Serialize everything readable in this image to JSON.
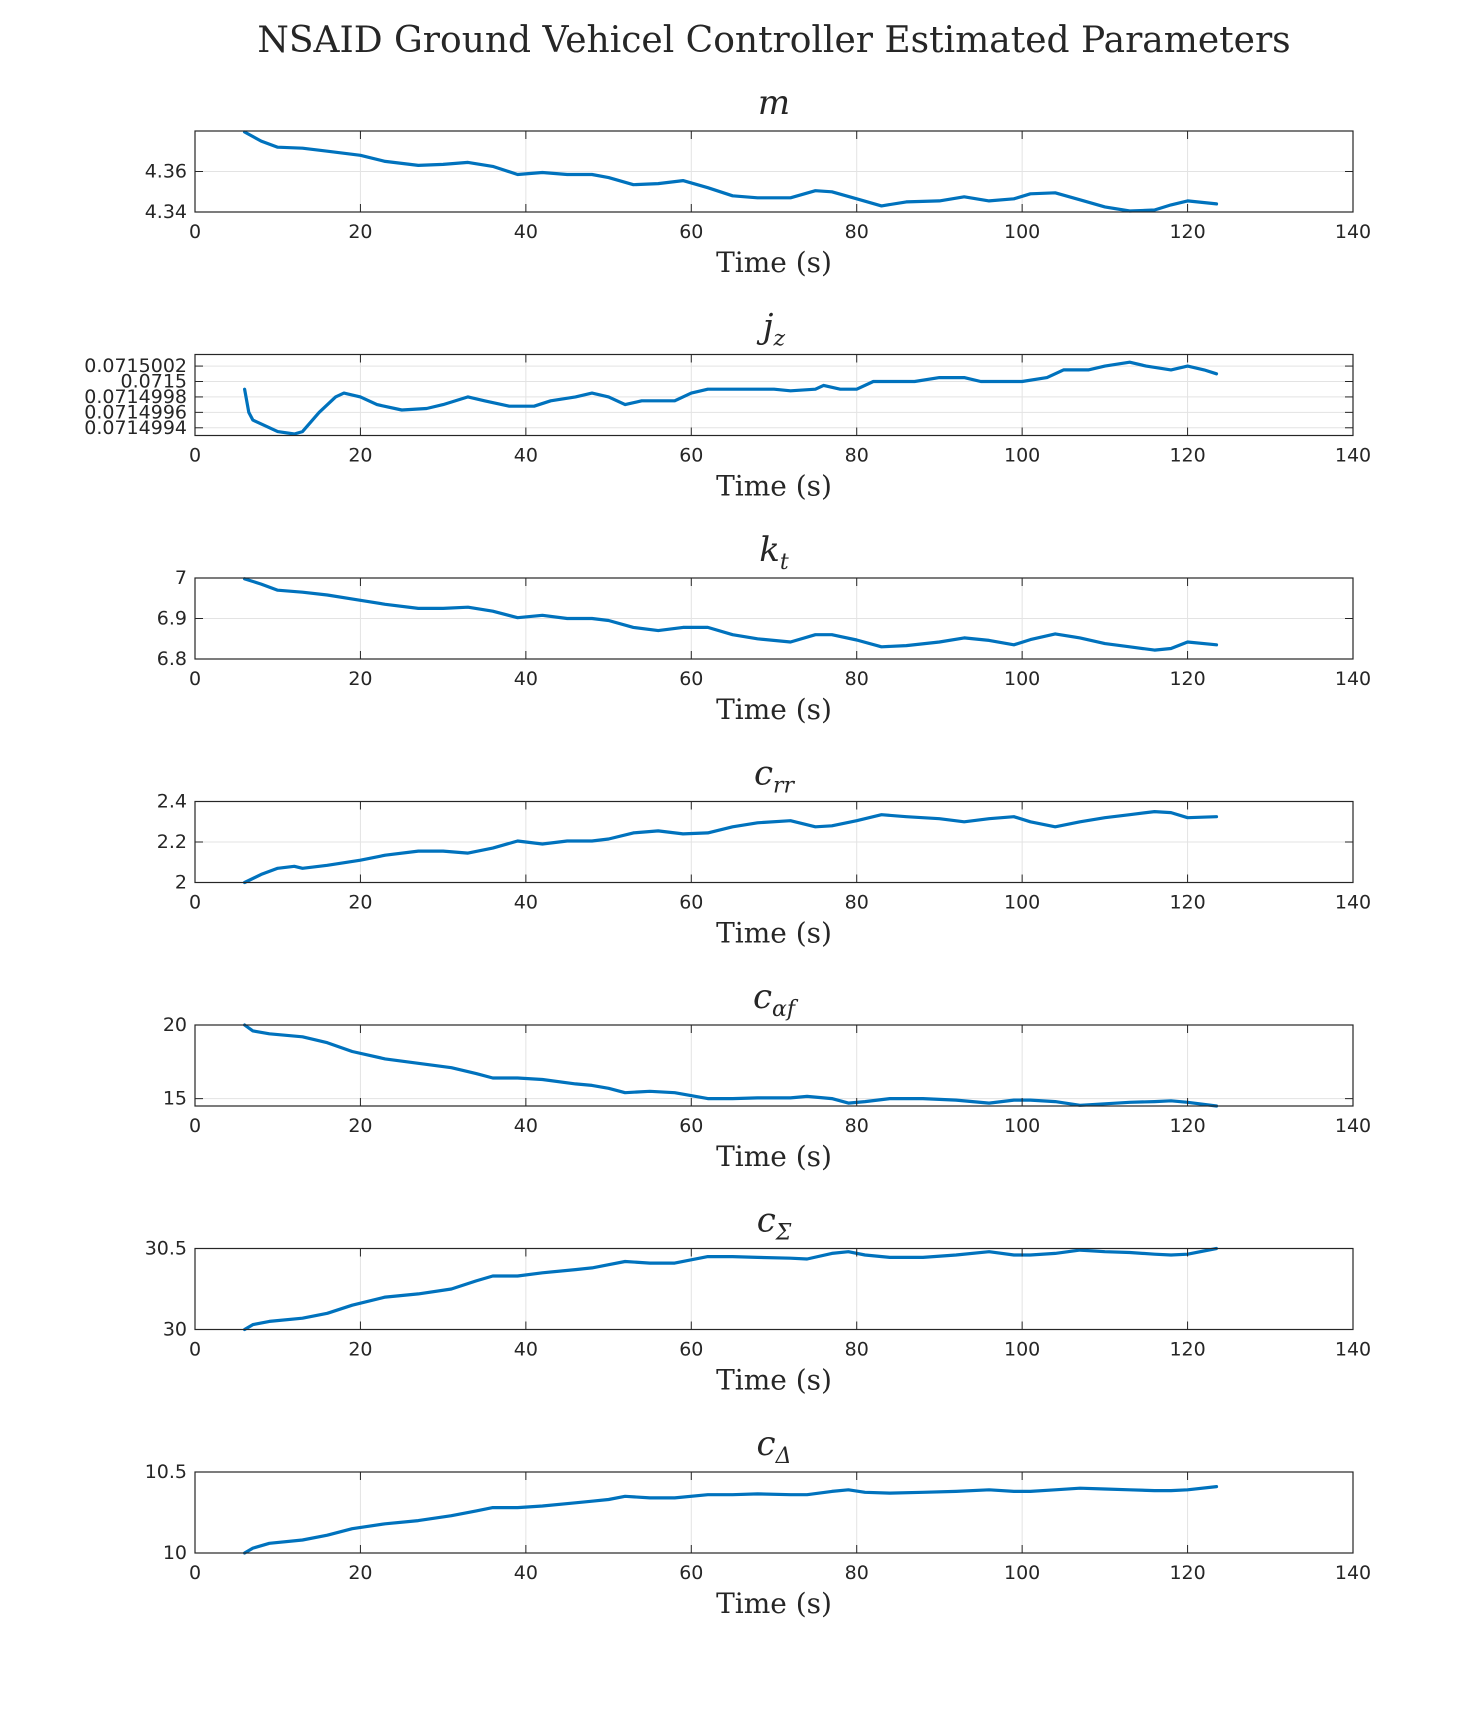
{
  "figure": {
    "title": "NSAID Ground Vehicel Controller Estimated Parameters",
    "line_color": "#0072BD",
    "grid_color": "#e3e3e3",
    "axis_color": "#262626"
  },
  "chart_data": [
    {
      "type": "line",
      "title": "m",
      "title_sub": "",
      "xlabel": "Time (s)",
      "xlim": [
        0,
        140
      ],
      "xticks": [
        0,
        20,
        40,
        60,
        80,
        100,
        120,
        140
      ],
      "ylim": [
        4.34,
        4.38
      ],
      "yticks": [
        "4.34",
        "4.36"
      ],
      "ytick_values": [
        4.34,
        4.36
      ],
      "grid": true,
      "series": [
        {
          "x": [
            6,
            8,
            10,
            13,
            16,
            20,
            23,
            27,
            30,
            33,
            36,
            39,
            42,
            45,
            48,
            50,
            53,
            56,
            59,
            62,
            65,
            68,
            72,
            75,
            77,
            80,
            83,
            86,
            90,
            93,
            96,
            99,
            101,
            104,
            107,
            110,
            113,
            116,
            118,
            120,
            123.5
          ],
          "y": [
            4.3795,
            4.375,
            4.372,
            4.3715,
            4.37,
            4.368,
            4.365,
            4.363,
            4.3635,
            4.3645,
            4.3625,
            4.3585,
            4.3595,
            4.3585,
            4.3585,
            4.357,
            4.3535,
            4.354,
            4.3555,
            4.352,
            4.348,
            4.347,
            4.347,
            4.3505,
            4.35,
            4.3465,
            4.343,
            4.345,
            4.3455,
            4.3475,
            4.3455,
            4.3465,
            4.349,
            4.3495,
            4.346,
            4.3425,
            4.3405,
            4.341,
            4.3435,
            4.3455,
            4.344
          ]
        }
      ]
    },
    {
      "type": "line",
      "title": "j",
      "title_sub": "z",
      "xlabel": "Time (s)",
      "xlim": [
        0,
        140
      ],
      "xticks": [
        0,
        20,
        40,
        60,
        80,
        100,
        120,
        140
      ],
      "ylim": [
        0.0714993,
        0.07150035
      ],
      "yticks": [
        "0.0714994",
        "0.0714996",
        "0.0714998",
        "0.0715",
        "0.0715002"
      ],
      "ytick_values": [
        0.0714994,
        0.0714996,
        0.0714998,
        0.0715,
        0.0715002
      ],
      "grid": true,
      "series": [
        {
          "x": [
            6,
            6.5,
            7,
            8,
            10,
            12,
            13,
            15,
            17,
            18,
            20,
            22,
            25,
            28,
            30,
            33,
            35,
            38,
            41,
            43,
            46,
            48,
            50,
            52,
            54,
            57,
            58,
            60,
            62,
            65,
            67,
            70,
            72,
            75,
            76,
            78,
            80,
            82,
            85,
            87,
            90,
            93,
            95,
            98,
            100,
            103,
            105,
            108,
            110,
            113,
            115,
            118,
            120,
            122,
            123.5
          ],
          "y": [
            0.0714999,
            0.0714996,
            0.0714995,
            0.07149945,
            0.07149935,
            0.07149932,
            0.07149935,
            0.0714996,
            0.0714998,
            0.07149985,
            0.0714998,
            0.0714997,
            0.07149963,
            0.07149965,
            0.0714997,
            0.0714998,
            0.07149975,
            0.07149968,
            0.07149968,
            0.07149975,
            0.0714998,
            0.07149985,
            0.0714998,
            0.0714997,
            0.07149975,
            0.07149975,
            0.07149975,
            0.07149985,
            0.0714999,
            0.0714999,
            0.0714999,
            0.0714999,
            0.07149988,
            0.0714999,
            0.07149995,
            0.0714999,
            0.0714999,
            0.0715,
            0.0715,
            0.0715,
            0.07150005,
            0.07150005,
            0.0715,
            0.0715,
            0.0715,
            0.07150005,
            0.07150015,
            0.07150015,
            0.0715002,
            0.07150025,
            0.0715002,
            0.07150015,
            0.0715002,
            0.07150015,
            0.0715001
          ]
        }
      ]
    },
    {
      "type": "line",
      "title": "k",
      "title_sub": "t",
      "xlabel": "Time (s)",
      "xlim": [
        0,
        140
      ],
      "xticks": [
        0,
        20,
        40,
        60,
        80,
        100,
        120,
        140
      ],
      "ylim": [
        6.8,
        7.0
      ],
      "yticks": [
        "6.8",
        "6.9",
        "7"
      ],
      "ytick_values": [
        6.8,
        6.9,
        7.0
      ],
      "grid": true,
      "series": [
        {
          "x": [
            6,
            8,
            10,
            13,
            16,
            20,
            23,
            27,
            30,
            33,
            36,
            39,
            42,
            45,
            48,
            50,
            53,
            56,
            59,
            62,
            65,
            68,
            72,
            75,
            77,
            80,
            83,
            86,
            90,
            93,
            96,
            99,
            101,
            104,
            107,
            110,
            113,
            116,
            118,
            120,
            123.5
          ],
          "y": [
            6.998,
            6.985,
            6.97,
            6.965,
            6.958,
            6.945,
            6.935,
            6.925,
            6.925,
            6.928,
            6.918,
            6.902,
            6.908,
            6.9,
            6.9,
            6.895,
            6.878,
            6.87,
            6.878,
            6.878,
            6.86,
            6.85,
            6.842,
            6.86,
            6.86,
            6.847,
            6.83,
            6.833,
            6.842,
            6.852,
            6.846,
            6.835,
            6.848,
            6.862,
            6.852,
            6.838,
            6.83,
            6.822,
            6.826,
            6.842,
            6.835
          ]
        }
      ]
    },
    {
      "type": "line",
      "title": "c",
      "title_sub": "rr",
      "xlabel": "Time (s)",
      "xlim": [
        0,
        140
      ],
      "xticks": [
        0,
        20,
        40,
        60,
        80,
        100,
        120,
        140
      ],
      "ylim": [
        2.0,
        2.4
      ],
      "yticks": [
        "2",
        "2.2",
        "2.4"
      ],
      "ytick_values": [
        2.0,
        2.2,
        2.4
      ],
      "grid": true,
      "series": [
        {
          "x": [
            6,
            8,
            10,
            12,
            13,
            16,
            20,
            23,
            27,
            30,
            33,
            36,
            39,
            42,
            45,
            48,
            50,
            53,
            56,
            59,
            62,
            65,
            68,
            72,
            75,
            77,
            80,
            83,
            86,
            90,
            93,
            96,
            99,
            101,
            104,
            107,
            110,
            113,
            116,
            118,
            120,
            123.5
          ],
          "y": [
            2.0,
            2.04,
            2.07,
            2.08,
            2.07,
            2.085,
            2.11,
            2.135,
            2.155,
            2.155,
            2.145,
            2.17,
            2.205,
            2.19,
            2.205,
            2.205,
            2.215,
            2.245,
            2.255,
            2.24,
            2.245,
            2.275,
            2.295,
            2.305,
            2.275,
            2.28,
            2.305,
            2.335,
            2.325,
            2.315,
            2.3,
            2.315,
            2.325,
            2.3,
            2.275,
            2.3,
            2.32,
            2.335,
            2.35,
            2.345,
            2.32,
            2.325
          ]
        }
      ]
    },
    {
      "type": "line",
      "title": "c",
      "title_sub": "αf",
      "xlabel": "Time (s)",
      "xlim": [
        0,
        140
      ],
      "xticks": [
        0,
        20,
        40,
        60,
        80,
        100,
        120,
        140
      ],
      "ylim": [
        14.5,
        20
      ],
      "yticks": [
        "15",
        "20"
      ],
      "ytick_values": [
        15,
        20
      ],
      "grid": true,
      "series": [
        {
          "x": [
            6,
            7,
            9,
            13,
            16,
            19,
            23,
            27,
            31,
            34,
            36,
            39,
            42,
            46,
            48,
            50,
            52,
            55,
            58,
            62,
            65,
            68,
            72,
            74,
            77,
            79,
            81,
            84,
            88,
            92,
            96,
            99,
            101,
            104,
            107,
            110,
            113,
            116,
            118,
            120,
            123.5
          ],
          "y": [
            20.0,
            19.6,
            19.4,
            19.2,
            18.8,
            18.2,
            17.7,
            17.4,
            17.1,
            16.7,
            16.4,
            16.4,
            16.3,
            16.0,
            15.9,
            15.7,
            15.4,
            15.5,
            15.4,
            15.0,
            15.0,
            15.05,
            15.05,
            15.15,
            15.0,
            14.7,
            14.8,
            15.0,
            15.0,
            14.9,
            14.7,
            14.9,
            14.9,
            14.8,
            14.55,
            14.65,
            14.75,
            14.8,
            14.85,
            14.75,
            14.5
          ]
        }
      ]
    },
    {
      "type": "line",
      "title": "c",
      "title_sub": "Σ",
      "xlabel": "Time (s)",
      "xlim": [
        0,
        140
      ],
      "xticks": [
        0,
        20,
        40,
        60,
        80,
        100,
        120,
        140
      ],
      "ylim": [
        30,
        30.5
      ],
      "yticks": [
        "30",
        "30.5"
      ],
      "ytick_values": [
        30,
        30.5
      ],
      "grid": true,
      "series": [
        {
          "x": [
            6,
            7,
            9,
            13,
            16,
            19,
            23,
            27,
            31,
            34,
            36,
            39,
            42,
            46,
            48,
            50,
            52,
            55,
            58,
            62,
            65,
            68,
            72,
            74,
            77,
            79,
            81,
            84,
            88,
            92,
            96,
            99,
            101,
            104,
            107,
            110,
            113,
            116,
            118,
            120,
            123.5
          ],
          "y": [
            30.0,
            30.03,
            30.05,
            30.07,
            30.1,
            30.15,
            30.2,
            30.22,
            30.25,
            30.3,
            30.33,
            30.33,
            30.35,
            30.37,
            30.38,
            30.4,
            30.42,
            30.41,
            30.41,
            30.45,
            30.45,
            30.445,
            30.44,
            30.435,
            30.47,
            30.48,
            30.46,
            30.445,
            30.445,
            30.46,
            30.48,
            30.46,
            30.46,
            30.47,
            30.49,
            30.48,
            30.475,
            30.465,
            30.46,
            30.465,
            30.5
          ]
        }
      ]
    },
    {
      "type": "line",
      "title": "c",
      "title_sub": "Δ",
      "xlabel": "Time (s)",
      "xlim": [
        0,
        140
      ],
      "xticks": [
        0,
        20,
        40,
        60,
        80,
        100,
        120,
        140
      ],
      "ylim": [
        10,
        10.5
      ],
      "yticks": [
        "10",
        "10.5"
      ],
      "ytick_values": [
        10,
        10.5
      ],
      "grid": true,
      "series": [
        {
          "x": [
            6,
            7,
            9,
            13,
            16,
            19,
            23,
            27,
            31,
            34,
            36,
            39,
            42,
            46,
            48,
            50,
            52,
            55,
            58,
            62,
            65,
            68,
            72,
            74,
            77,
            79,
            81,
            84,
            88,
            92,
            96,
            99,
            101,
            104,
            107,
            110,
            113,
            116,
            118,
            120,
            123.5
          ],
          "y": [
            10.0,
            10.03,
            10.06,
            10.08,
            10.11,
            10.15,
            10.18,
            10.2,
            10.23,
            10.26,
            10.28,
            10.28,
            10.29,
            10.31,
            10.32,
            10.33,
            10.35,
            10.34,
            10.34,
            10.36,
            10.36,
            10.365,
            10.36,
            10.36,
            10.38,
            10.39,
            10.375,
            10.37,
            10.375,
            10.38,
            10.39,
            10.38,
            10.38,
            10.39,
            10.4,
            10.395,
            10.39,
            10.385,
            10.385,
            10.39,
            10.41
          ]
        }
      ]
    }
  ]
}
